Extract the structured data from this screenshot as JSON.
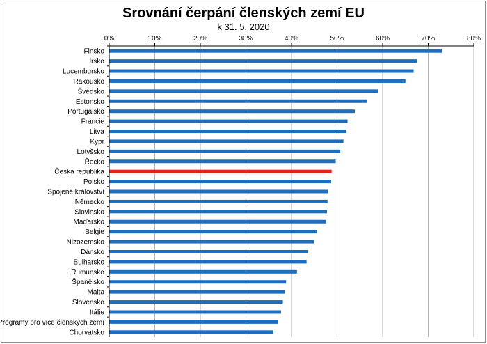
{
  "chart_data": {
    "type": "bar",
    "orientation": "horizontal",
    "title": "Srovnání čerpání členských zemí EU",
    "subtitle": "k 31. 5. 2020",
    "xlim": [
      0,
      80
    ],
    "x_ticks": [
      "0%",
      "10%",
      "20%",
      "30%",
      "40%",
      "50%",
      "60%",
      "70%",
      "80%"
    ],
    "x_tick_values": [
      0,
      10,
      20,
      30,
      40,
      50,
      60,
      70,
      80
    ],
    "x_axis_position": "top",
    "grid": true,
    "categories": [
      "Finsko",
      "Irsko",
      "Lucembursko",
      "Rakousko",
      "Švédsko",
      "Estonsko",
      "Portugalsko",
      "Francie",
      "Litva",
      "Kypr",
      "Lotyšsko",
      "Řecko",
      "Česká republika",
      "Polsko",
      "Spojené království",
      "Německo",
      "Slovinsko",
      "Maďarsko",
      "Belgie",
      "Nizozemsko",
      "Dánsko",
      "Bulharsko",
      "Rumunsko",
      "Španělsko",
      "Malta",
      "Slovensko",
      "Itálie",
      "Programy pro více členských zemí",
      "Chorvatsko"
    ],
    "values": [
      73.0,
      67.5,
      66.8,
      65.0,
      59.0,
      56.6,
      53.9,
      52.3,
      52.0,
      51.4,
      50.7,
      49.7,
      48.8,
      48.7,
      48.0,
      47.9,
      47.8,
      47.6,
      45.5,
      45.0,
      43.6,
      43.3,
      41.2,
      38.8,
      38.6,
      38.1,
      37.7,
      37.1,
      36.0
    ],
    "highlight_category": "Česká republika",
    "bar_color": "#1f6dbd",
    "highlight_color": "#e8201a"
  }
}
